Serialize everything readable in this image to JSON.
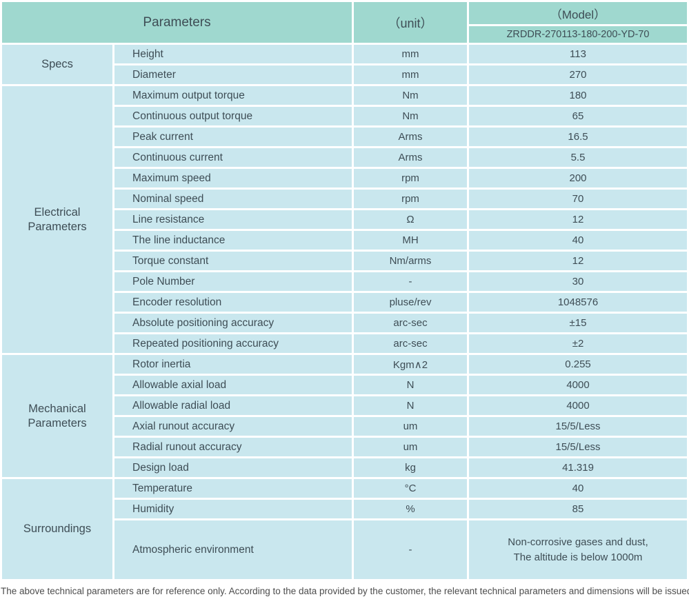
{
  "header": {
    "parameters_label": "Parameters",
    "unit_label": "（unit）",
    "model_label": "（Model）",
    "model_number": "ZRDDR-270113-180-200-YD-70"
  },
  "sections": [
    {
      "label": "Specs",
      "rows": [
        {
          "param": "Height",
          "unit": "mm",
          "value": "113"
        },
        {
          "param": "Diameter",
          "unit": "mm",
          "value": "270"
        }
      ]
    },
    {
      "label": "Electrical Parameters",
      "rows": [
        {
          "param": "Maximum output torque",
          "unit": "Nm",
          "value": "180"
        },
        {
          "param": "Continuous output torque",
          "unit": "Nm",
          "value": "65"
        },
        {
          "param": "Peak current",
          "unit": "Arms",
          "value": "16.5"
        },
        {
          "param": "Continuous current",
          "unit": "Arms",
          "value": "5.5"
        },
        {
          "param": "Maximum speed",
          "unit": "rpm",
          "value": "200"
        },
        {
          "param": "Nominal speed",
          "unit": "rpm",
          "value": "70"
        },
        {
          "param": "Line resistance",
          "unit": "Ω",
          "value": "12"
        },
        {
          "param": "The line inductance",
          "unit": "MH",
          "value": "40"
        },
        {
          "param": "Torque constant",
          "unit": "Nm/arms",
          "value": "12"
        },
        {
          "param": "Pole Number",
          "unit": "-",
          "value": "30"
        },
        {
          "param": "Encoder resolution",
          "unit": "pluse/rev",
          "value": "1048576"
        },
        {
          "param": "Absolute positioning accuracy",
          "unit": "arc-sec",
          "value": "±15"
        },
        {
          "param": "Repeated positioning accuracy",
          "unit": "arc-sec",
          "value": "±2"
        }
      ]
    },
    {
      "label": "Mechanical Parameters",
      "rows": [
        {
          "param": "Rotor inertia",
          "unit": "Kgm∧2",
          "value": "0.255"
        },
        {
          "param": "Allowable axial load",
          "unit": "N",
          "value": "4000"
        },
        {
          "param": "Allowable radial load",
          "unit": "N",
          "value": "4000"
        },
        {
          "param": "Axial runout accuracy",
          "unit": "um",
          "value": "15/5/Less"
        },
        {
          "param": "Radial runout accuracy",
          "unit": "um",
          "value": "15/5/Less"
        },
        {
          "param": "Design load",
          "unit": "kg",
          "value": "41.319"
        }
      ]
    },
    {
      "label": "Surroundings",
      "rows": [
        {
          "param": "Temperature",
          "unit": "°C",
          "value": "40"
        },
        {
          "param": "Humidity",
          "unit": "%",
          "value": "85"
        },
        {
          "param": "Atmospheric environment",
          "unit": "-",
          "value": "Non-corrosive gases and dust,\nThe altitude is below 1000m"
        }
      ]
    }
  ],
  "footer_note": "The above technical parameters are for reference only. According to the data provided by the customer, the relevant technical parameters and dimensions will be issued.",
  "colors": {
    "header_bg": "#9fd8cf",
    "cell_bg": "#c9e7ee",
    "text": "#3e4d55",
    "footer_text": "#4c4c4c",
    "border": "#ffffff"
  }
}
